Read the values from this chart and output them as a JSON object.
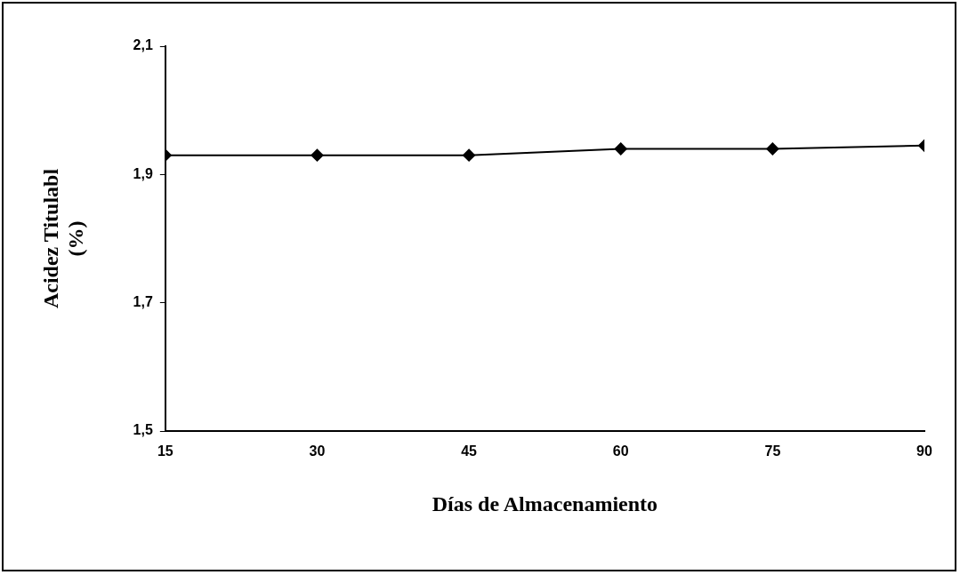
{
  "chart_data": {
    "type": "line",
    "xlabel": "Días de Almacenamiento",
    "ylabel": "Acidez Titulabl\n(%)",
    "x": [
      15,
      30,
      45,
      60,
      75,
      90
    ],
    "series": [
      {
        "color": "#000000",
        "values": [
          1.93,
          1.93,
          1.93,
          1.94,
          1.94,
          1.945
        ]
      }
    ],
    "xlim": [
      15,
      90
    ],
    "xticks": [
      15,
      30,
      45,
      60,
      75,
      90
    ],
    "ylim": [
      1.5,
      2.1
    ],
    "yticks": [
      {
        "value": 1.5,
        "label": "1,5"
      },
      {
        "value": 1.7,
        "label": "1,7"
      },
      {
        "value": 1.9,
        "label": "1,9"
      },
      {
        "value": 2.1,
        "label": "2,1"
      }
    ],
    "marker": "diamond",
    "line_style": "solid",
    "grid": false,
    "legend": false
  }
}
